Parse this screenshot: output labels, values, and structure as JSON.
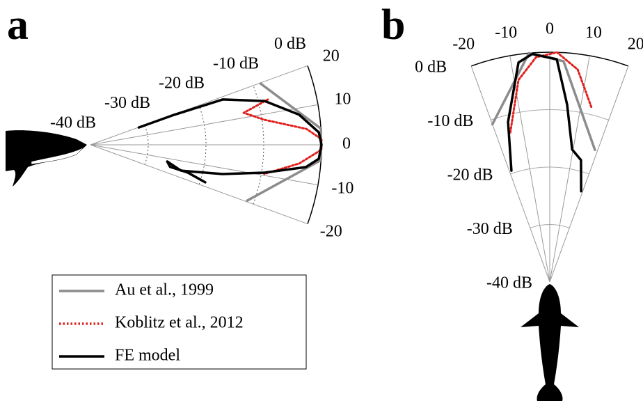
{
  "chart_data": [
    {
      "type": "polar",
      "panel": "a",
      "orientation": "horizontal",
      "thetalim": [
        -20,
        20
      ],
      "thetaticks": [
        20,
        10,
        0,
        -10,
        -20
      ],
      "rlim": [
        -40,
        0
      ],
      "rticks": [
        {
          "value": -40,
          "label": "-40 dB"
        },
        {
          "value": -30,
          "label": "-30 dB"
        },
        {
          "value": -20,
          "label": "-20 dB"
        },
        {
          "value": -10,
          "label": "-10 dB"
        },
        {
          "value": 0,
          "label": "0 dB"
        }
      ],
      "series": [
        {
          "name": "Au et al., 1999",
          "color": "#8c8c8c",
          "style": "solid",
          "x": [
            19.8,
            4.0,
            -3.8,
            -19.6
          ],
          "values": [
            -8.7,
            0,
            0,
            -11.2
          ]
        },
        {
          "name": "Koblitz et al., 2012",
          "color": "#e0201e",
          "style": "dotted",
          "x": [
            14.3,
            11.8,
            8.2,
            4.2,
            1.4,
            -1.2,
            -5.1,
            -9.5
          ],
          "values": [
            -8.3,
            -12.9,
            -9.6,
            -2.5,
            0,
            0,
            -3.7,
            -9.5
          ]
        },
        {
          "name": "FE model",
          "color": "#000000",
          "style": "solid",
          "x": [
            19.7,
            19.7,
            18.9,
            14.1,
            8.2,
            3.1,
            0,
            -3.5,
            -5.9,
            -9.1,
            -12.5,
            -15.9,
            -12.3,
            -15.5,
            -15.9,
            -18.1
          ],
          "values": [
            -31.1,
            -24.6,
            -15.8,
            -8.9,
            -3.5,
            -0.4,
            0,
            -0.4,
            -2.5,
            -9.5,
            -16.6,
            -23.7,
            -26.4,
            -25.7,
            -22.5,
            -19.1
          ]
        }
      ]
    },
    {
      "type": "polar",
      "panel": "b",
      "orientation": "vertical",
      "thetalim": [
        -20,
        20
      ],
      "thetaticks": [
        -20,
        -10,
        0,
        10,
        20
      ],
      "rlim": [
        -40,
        0
      ],
      "rticks": [
        {
          "value": -40,
          "label": "-40 dB"
        },
        {
          "value": -30,
          "label": "-30 dB"
        },
        {
          "value": -20,
          "label": "-20 dB"
        },
        {
          "value": -10,
          "label": "-10 dB"
        },
        {
          "value": 0,
          "label": "0 dB"
        }
      ],
      "series": [
        {
          "color": "#8c8c8c",
          "style": "solid",
          "x": [
            -20,
            -5.2,
            3.6,
            18.9
          ],
          "values": [
            -10.8,
            0,
            -1.5,
            -15.7
          ]
        },
        {
          "color": "#e0201e",
          "style": "dotted",
          "x": [
            -14.8,
            -8.8,
            -3.5,
            1.8,
            7.5,
            13.5
          ],
          "values": [
            -13.1,
            -4.4,
            -0.8,
            0,
            -2.7,
            -8.8
          ]
        },
        {
          "color": "#000000",
          "style": "solid",
          "x": [
            -19.0,
            -14.6,
            -8.1,
            -4.4,
            1.8,
            5.6,
            9.6,
            14.4,
            19.1
          ],
          "values": [
            -19.5,
            -11.2,
            -1.4,
            -0.2,
            -1.2,
            -9,
            -16.6,
            -18.1,
            -23.3
          ]
        }
      ]
    }
  ]
}
